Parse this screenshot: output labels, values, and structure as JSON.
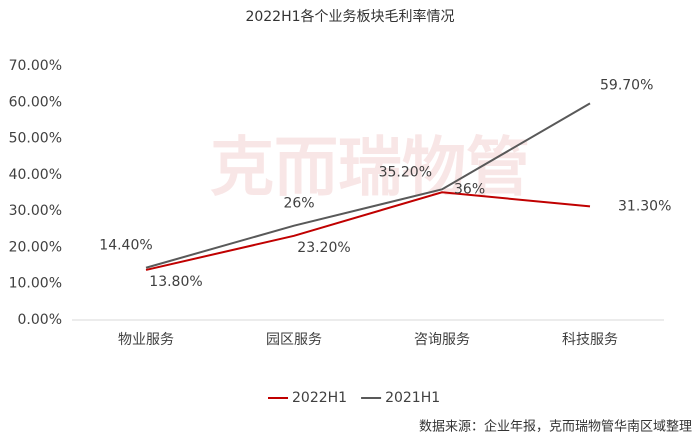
{
  "chart_data": {
    "type": "line",
    "title": "2022H1各个业务板块毛利率情况",
    "watermark": "克而瑞物管",
    "source": "数据来源：企业年报，克而瑞物管华南区域整理",
    "categories": [
      "物业服务",
      "园区服务",
      "咨询服务",
      "科技服务"
    ],
    "series": [
      {
        "name": "2022H1",
        "color": "#c00000",
        "values": [
          13.8,
          23.2,
          35.2,
          31.3
        ],
        "value_labels": [
          "13.80%",
          "23.20%",
          "35.20%",
          "31.30%"
        ]
      },
      {
        "name": "2021H1",
        "color": "#595959",
        "values": [
          14.4,
          26,
          36,
          59.7
        ],
        "value_labels": [
          "14.40%",
          "26%",
          "36%",
          "59.70%"
        ]
      }
    ],
    "ylim": [
      0,
      70
    ],
    "yticks": [
      {
        "value": 0,
        "label": "0.00%"
      },
      {
        "value": 10,
        "label": "10.00%"
      },
      {
        "value": 20,
        "label": "20.00%"
      },
      {
        "value": 30,
        "label": "30.00%"
      },
      {
        "value": 40,
        "label": "40.00%"
      },
      {
        "value": 50,
        "label": "50.00%"
      },
      {
        "value": 60,
        "label": "60.00%"
      },
      {
        "value": 70,
        "label": "70.00%"
      }
    ],
    "grid": false,
    "legend": "bottom"
  }
}
